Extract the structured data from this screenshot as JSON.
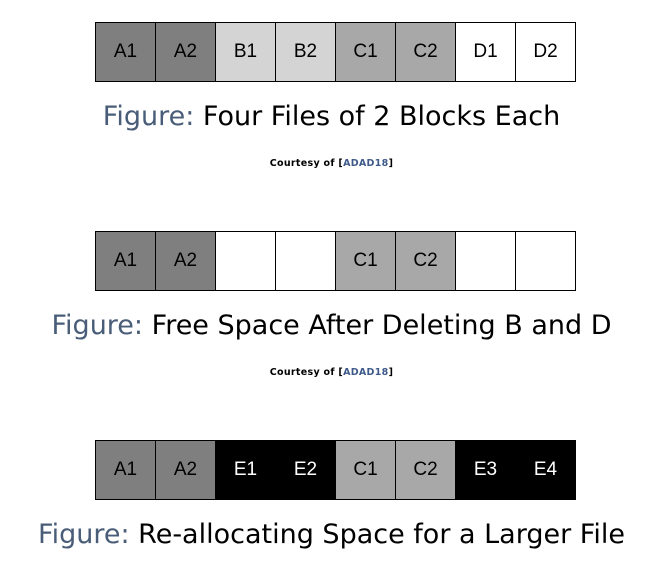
{
  "colors": {
    "dark_gray": "#7f7f7f",
    "light_gray": "#d4d4d4",
    "mid_gray": "#a8a8a8",
    "empty": "#ffffff",
    "black": "#000000",
    "caption_prefix": "#4a5d78",
    "citation": "#3e5a8a"
  },
  "figures": [
    {
      "blocks": [
        {
          "label": "A1",
          "fill": "dark_gray"
        },
        {
          "label": "A2",
          "fill": "dark_gray"
        },
        {
          "label": "B1",
          "fill": "light_gray"
        },
        {
          "label": "B2",
          "fill": "light_gray"
        },
        {
          "label": "C1",
          "fill": "mid_gray"
        },
        {
          "label": "C2",
          "fill": "mid_gray"
        },
        {
          "label": "D1",
          "fill": "empty"
        },
        {
          "label": "D2",
          "fill": "empty"
        }
      ],
      "caption_prefix": "Figure:",
      "caption_text": "Four Files of 2 Blocks Each",
      "courtesy_prefix": "Courtesy of [",
      "courtesy_cite": "ADAD18",
      "courtesy_suffix": "]"
    },
    {
      "blocks": [
        {
          "label": "A1",
          "fill": "dark_gray"
        },
        {
          "label": "A2",
          "fill": "dark_gray"
        },
        {
          "label": "",
          "fill": "empty"
        },
        {
          "label": "",
          "fill": "empty"
        },
        {
          "label": "C1",
          "fill": "mid_gray"
        },
        {
          "label": "C2",
          "fill": "mid_gray"
        },
        {
          "label": "",
          "fill": "empty"
        },
        {
          "label": "",
          "fill": "empty"
        }
      ],
      "caption_prefix": "Figure:",
      "caption_text": "Free Space After Deleting B and D",
      "courtesy_prefix": "Courtesy of [",
      "courtesy_cite": "ADAD18",
      "courtesy_suffix": "]"
    },
    {
      "blocks": [
        {
          "label": "A1",
          "fill": "dark_gray"
        },
        {
          "label": "A2",
          "fill": "dark_gray"
        },
        {
          "label": "E1",
          "fill": "black"
        },
        {
          "label": "E2",
          "fill": "black"
        },
        {
          "label": "C1",
          "fill": "mid_gray"
        },
        {
          "label": "C2",
          "fill": "mid_gray"
        },
        {
          "label": "E3",
          "fill": "black"
        },
        {
          "label": "E4",
          "fill": "black"
        }
      ],
      "caption_prefix": "Figure:",
      "caption_text": "Re-allocating Space for a Larger File"
    }
  ]
}
